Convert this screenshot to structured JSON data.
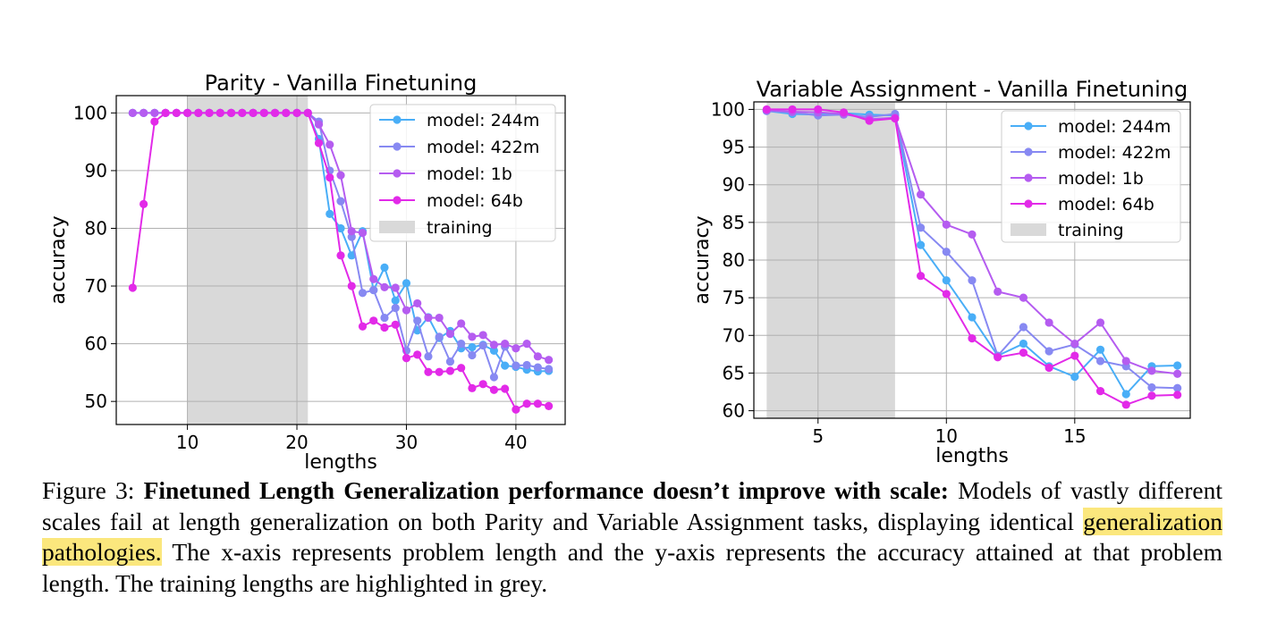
{
  "chart_data": [
    {
      "type": "line",
      "title": "Parity - Vanilla Finetuning",
      "xlabel": "lengths",
      "ylabel": "accuracy",
      "xlim": [
        3.5,
        44.5
      ],
      "ylim": [
        46,
        103
      ],
      "xticks": [
        10,
        20,
        30,
        40
      ],
      "yticks": [
        50,
        60,
        70,
        80,
        90,
        100
      ],
      "grid": true,
      "legend_position": "top-right",
      "training_range": [
        10,
        21
      ],
      "training_label": "training",
      "series": [
        {
          "name": "model: 244m",
          "color": "#49aef7",
          "x": [
            5,
            6,
            7,
            8,
            9,
            10,
            11,
            12,
            13,
            14,
            15,
            16,
            17,
            18,
            19,
            20,
            21,
            22,
            23,
            24,
            25,
            26,
            27,
            28,
            29,
            30,
            31,
            32,
            33,
            34,
            35,
            36,
            37,
            38,
            39,
            40,
            41,
            42,
            43
          ],
          "y": [
            100,
            100,
            100,
            100,
            100,
            100,
            100,
            100,
            100,
            100,
            100,
            100,
            100,
            100,
            100,
            100,
            100,
            95.5,
            82.5,
            80,
            75.3,
            79.5,
            69.3,
            73.2,
            67.5,
            70.5,
            62.3,
            64.6,
            61,
            62.2,
            59.2,
            59.4,
            59.8,
            58.8,
            56.2,
            56,
            55.5,
            55.2,
            55.3
          ]
        },
        {
          "name": "model: 422m",
          "color": "#8789f2",
          "x": [
            5,
            6,
            7,
            8,
            9,
            10,
            11,
            12,
            13,
            14,
            15,
            16,
            17,
            18,
            19,
            20,
            21,
            22,
            23,
            24,
            25,
            26,
            27,
            28,
            29,
            30,
            31,
            32,
            33,
            34,
            35,
            36,
            37,
            38,
            39,
            40,
            41,
            42,
            43
          ],
          "y": [
            100,
            100,
            100,
            100,
            100,
            100,
            100,
            100,
            100,
            100,
            100,
            100,
            100,
            100,
            100,
            100,
            100,
            98.5,
            90,
            84.7,
            78.5,
            68.8,
            69.3,
            64.5,
            66.2,
            58.8,
            64,
            57.8,
            61.2,
            56.9,
            60,
            58,
            59.7,
            54.2,
            59.5,
            56.2,
            56.3,
            55.9,
            55.6
          ]
        },
        {
          "name": "model: 1b",
          "color": "#b55cf0",
          "x": [
            5,
            6,
            7,
            8,
            9,
            10,
            11,
            12,
            13,
            14,
            15,
            16,
            17,
            18,
            19,
            20,
            21,
            22,
            23,
            24,
            25,
            26,
            27,
            28,
            29,
            30,
            31,
            32,
            33,
            34,
            35,
            36,
            37,
            38,
            39,
            40,
            41,
            42,
            43
          ],
          "y": [
            100,
            100,
            100,
            100,
            100,
            100,
            100,
            100,
            100,
            100,
            100,
            100,
            100,
            100,
            100,
            100,
            100,
            98,
            94.5,
            89.2,
            79.5,
            79.2,
            71.2,
            69.8,
            69.7,
            65.8,
            67,
            64.5,
            64.5,
            61.7,
            63.5,
            61.2,
            61.5,
            59.8,
            60,
            59.2,
            60,
            57.8,
            57.2
          ]
        },
        {
          "name": "model: 64b",
          "color": "#e22ae8",
          "x": [
            5,
            6,
            7,
            8,
            9,
            10,
            11,
            12,
            13,
            14,
            15,
            16,
            17,
            18,
            19,
            20,
            21,
            22,
            23,
            24,
            25,
            26,
            27,
            28,
            29,
            30,
            31,
            32,
            33,
            34,
            35,
            36,
            37,
            38,
            39,
            40,
            41,
            42,
            43
          ],
          "y": [
            69.7,
            84.2,
            98.5,
            100,
            100,
            100,
            100,
            100,
            100,
            100,
            100,
            100,
            100,
            100,
            100,
            100,
            100,
            94.8,
            88.8,
            75.3,
            70,
            63,
            64,
            62.8,
            63.3,
            57.5,
            58.1,
            55.1,
            55.1,
            55.3,
            55.8,
            52.3,
            53,
            52,
            52.2,
            48.6,
            49.6,
            49.6,
            49.2
          ]
        }
      ]
    },
    {
      "type": "line",
      "title": "Variable Assignment - Vanilla Finetuning",
      "xlabel": "lengths",
      "ylabel": "accuracy",
      "xlim": [
        2.5,
        19.5
      ],
      "ylim": [
        59,
        101
      ],
      "xticks": [
        5,
        10,
        15
      ],
      "yticks": [
        60,
        65,
        70,
        75,
        80,
        85,
        90,
        95,
        100
      ],
      "grid": true,
      "legend_position": "top-right",
      "training_range": [
        3,
        8
      ],
      "training_label": "training",
      "series": [
        {
          "name": "model: 244m",
          "color": "#49aef7",
          "x": [
            3,
            4,
            5,
            6,
            7,
            8,
            9,
            10,
            11,
            12,
            13,
            14,
            15,
            16,
            17,
            18,
            19
          ],
          "y": [
            99.8,
            99.4,
            99.3,
            99.5,
            99.3,
            99.2,
            82,
            77.3,
            72.4,
            67.3,
            68.9,
            65.9,
            64.5,
            68.1,
            62.2,
            65.9,
            66
          ]
        },
        {
          "name": "model: 422m",
          "color": "#8789f2",
          "x": [
            3,
            4,
            5,
            6,
            7,
            8,
            9,
            10,
            11,
            12,
            13,
            14,
            15,
            16,
            17,
            18,
            19
          ],
          "y": [
            99.8,
            99.6,
            99.2,
            99.3,
            99,
            99.4,
            84.3,
            81.1,
            77.3,
            67.3,
            71.1,
            67.9,
            68.8,
            66.6,
            65.9,
            63.1,
            63
          ]
        },
        {
          "name": "model: 1b",
          "color": "#b55cf0",
          "x": [
            3,
            4,
            5,
            6,
            7,
            8,
            9,
            10,
            11,
            12,
            13,
            14,
            15,
            16,
            17,
            18,
            19
          ],
          "y": [
            99.9,
            99.7,
            99.6,
            99.4,
            98.7,
            98.9,
            88.7,
            84.7,
            83.4,
            75.8,
            75,
            71.7,
            68.9,
            71.7,
            66.6,
            65.3,
            64.9
          ]
        },
        {
          "name": "model: 64b",
          "color": "#e22ae8",
          "x": [
            3,
            4,
            5,
            6,
            7,
            8,
            9,
            10,
            11,
            12,
            13,
            14,
            15,
            16,
            17,
            18,
            19
          ],
          "y": [
            100,
            100,
            100,
            99.6,
            98.5,
            98.8,
            77.9,
            75.5,
            69.6,
            67.1,
            67.7,
            65.7,
            67.3,
            62.6,
            60.8,
            62,
            62.1
          ]
        }
      ]
    }
  ],
  "caption": {
    "label": "Figure 3:",
    "bold": "Finetuned Length Generalization performance doesn’t improve with scale:",
    "text1": "Models of vastly different scales fail at length generalization on both Parity and Variable Assignment tasks, displaying identical",
    "highlight": "generalization pathologies.",
    "text2": "The x-axis represents problem length and the y-axis represents the accuracy attained at that problem length. The training lengths are highlighted in grey."
  }
}
